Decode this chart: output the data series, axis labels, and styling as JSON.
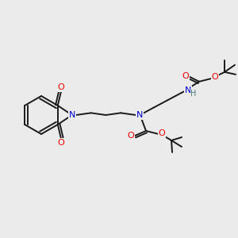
{
  "background_color": "#ebebeb",
  "bond_color": "#1a1a1a",
  "nitrogen_color": "#0000cc",
  "oxygen_color": "#ee0000",
  "carbon_color": "#1a1a1a",
  "hydrogen_color": "#4a7a7a",
  "figsize": [
    3.0,
    3.0
  ],
  "dpi": 100,
  "xlim": [
    0,
    300
  ],
  "ylim": [
    0,
    300
  ]
}
